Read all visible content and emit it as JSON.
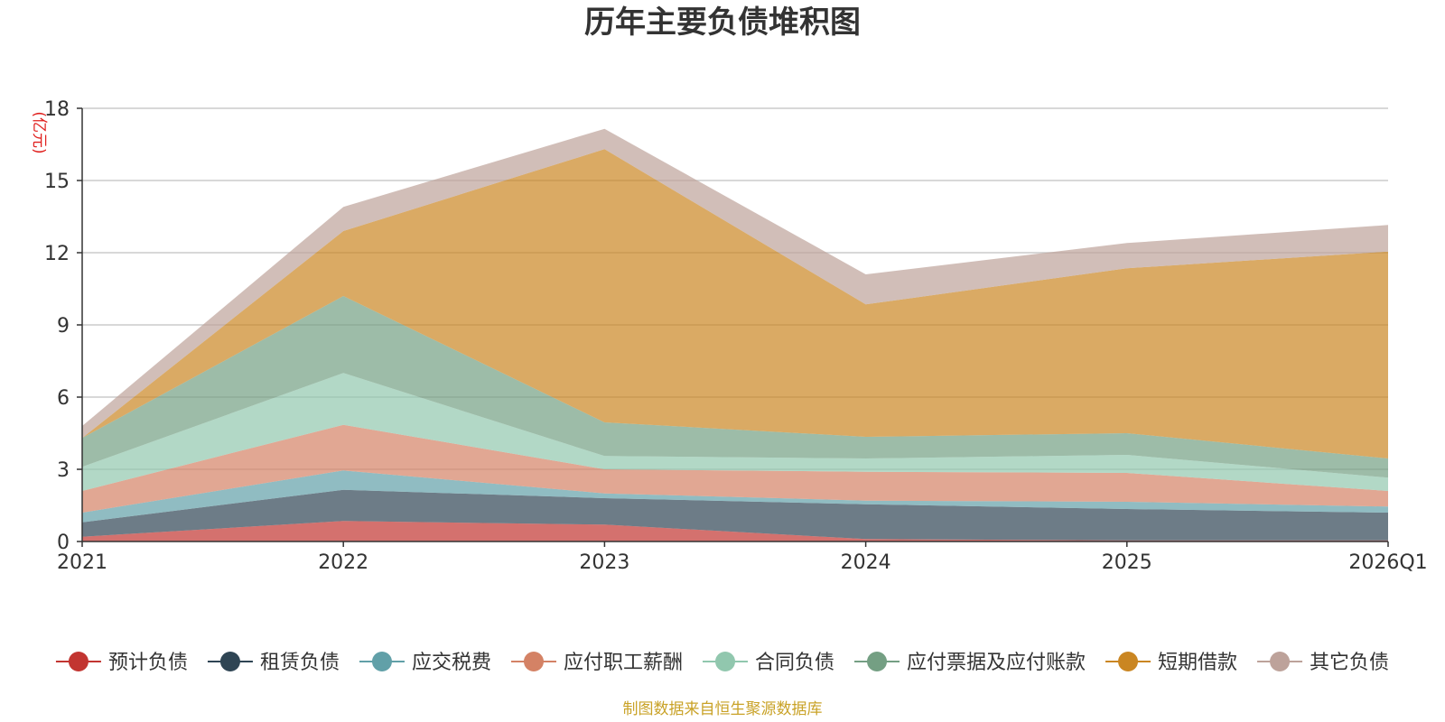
{
  "chart_data": {
    "type": "area",
    "stacked": true,
    "title": "历年主要负债堆积图",
    "unit_label": "(亿元)",
    "source": "制图数据来自恒生聚源数据库",
    "categories": [
      "2021",
      "2022",
      "2023",
      "2024",
      "2025",
      "2026Q1"
    ],
    "ylim": [
      0,
      18
    ],
    "yticks": [
      0,
      3,
      6,
      9,
      12,
      15,
      18
    ],
    "grid": true,
    "legend_position": "bottom",
    "series": [
      {
        "name": "预计负债",
        "values": [
          0.2,
          0.85,
          0.7,
          0.1,
          0.05,
          0.05
        ],
        "color": "#c23531"
      },
      {
        "name": "租赁负债",
        "values": [
          0.6,
          1.3,
          1.1,
          1.45,
          1.3,
          1.15
        ],
        "color": "#2f4554"
      },
      {
        "name": "应交税费",
        "values": [
          0.4,
          0.8,
          0.2,
          0.15,
          0.3,
          0.25
        ],
        "color": "#61a0a8"
      },
      {
        "name": "应付职工薪酬",
        "values": [
          0.9,
          1.9,
          1.0,
          1.2,
          1.2,
          0.65
        ],
        "color": "#d48265"
      },
      {
        "name": "合同负债",
        "values": [
          1.0,
          2.15,
          0.55,
          0.55,
          0.75,
          0.55
        ],
        "color": "#91c7ae"
      },
      {
        "name": "应付票据及应付账款",
        "values": [
          1.2,
          3.2,
          1.4,
          0.9,
          0.9,
          0.8
        ],
        "color": "#749f83"
      },
      {
        "name": "短期借款",
        "values": [
          0.0,
          2.7,
          11.35,
          5.5,
          6.85,
          8.6
        ],
        "color": "#ca8622"
      },
      {
        "name": "其它负债",
        "values": [
          0.5,
          1.0,
          0.85,
          1.25,
          1.05,
          1.1
        ],
        "color": "#bda29a"
      }
    ]
  }
}
